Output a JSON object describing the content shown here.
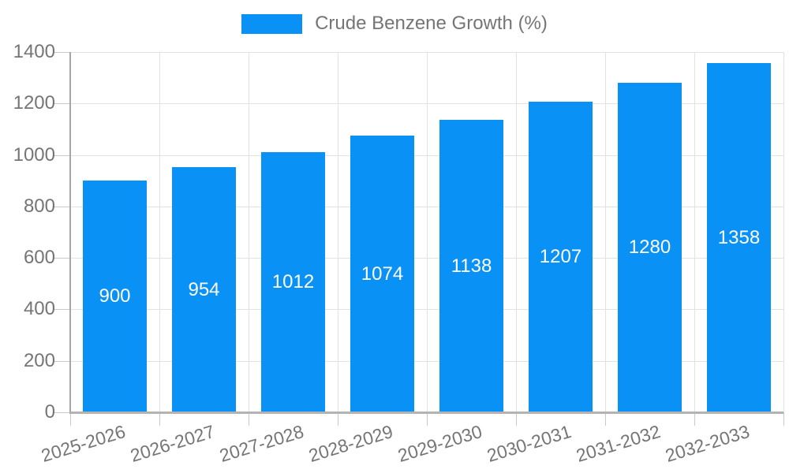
{
  "legend": {
    "label": "Crude Benzene Growth (%)"
  },
  "colors": {
    "bar": "#0a91f5",
    "axis_text": "#757575",
    "grid": "#e2e2e2",
    "tick": "#c9c9c9",
    "axis_line": "#a6a6a6",
    "baseline": "#b3b3b3",
    "value_label": "#ffffff",
    "background": "#ffffff"
  },
  "chart_data": {
    "type": "bar",
    "title": "",
    "xlabel": "",
    "ylabel": "",
    "series_label": "Crude Benzene Growth (%)",
    "categories": [
      "2025-2026",
      "2026-2027",
      "2027-2028",
      "2028-2029",
      "2029-2030",
      "2030-2031",
      "2031-2032",
      "2032-2033"
    ],
    "values": [
      900,
      954,
      1012,
      1074,
      1138,
      1207,
      1280,
      1358
    ],
    "ylim": [
      0,
      1400
    ],
    "yticks": [
      0,
      200,
      400,
      600,
      800,
      1000,
      1200,
      1400
    ],
    "grid": true,
    "legend_position": "top",
    "value_labels": "centered-inside-bars"
  }
}
